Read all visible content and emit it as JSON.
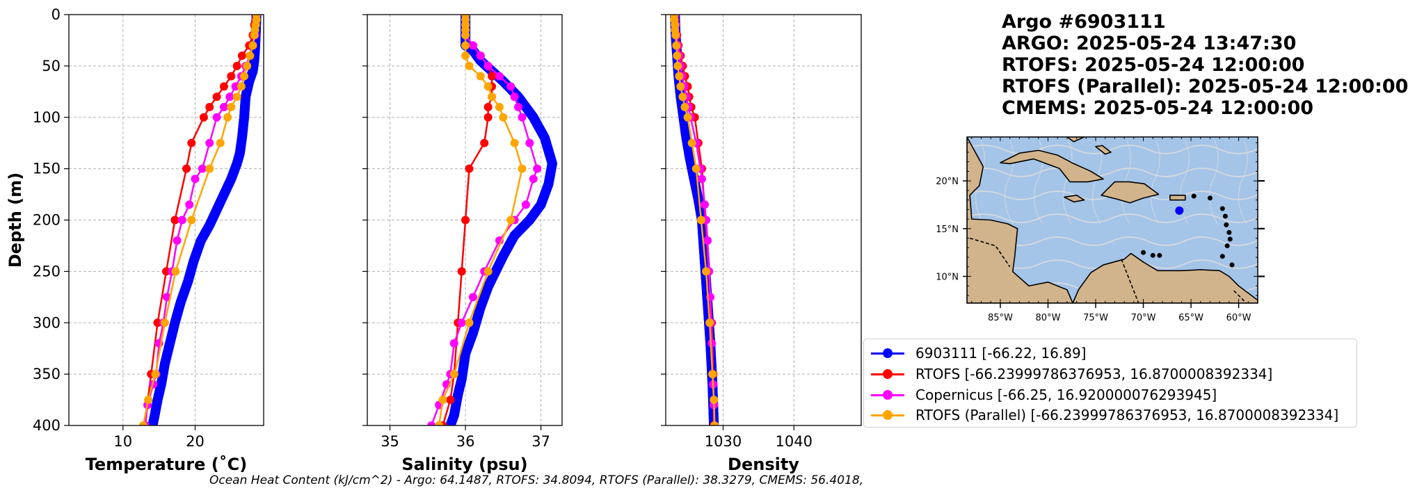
{
  "header": {
    "line1": "Argo #6903111",
    "line2": "ARGO:  2025-05-24 13:47:30",
    "line3": "RTOFS: 2025-05-24 12:00:00",
    "line4": "RTOFS (Parallel): 2025-05-24 12:00:00",
    "line5": "CMEMS: 2025-05-24 12:00:00"
  },
  "footer": {
    "text": "Ocean Heat Content (kJ/cm^2) - Argo: 64.1487,  RTOFS: 34.8094,  RTOFS (Parallel): 38.3279,  CMEMS: 56.4018,"
  },
  "legend": {
    "items": [
      {
        "label": "6903111 [-66.22, 16.89]",
        "color": "#0000ff"
      },
      {
        "label": "RTOFS [-66.23999786376953, 16.8700008392334]",
        "color": "#ff0000"
      },
      {
        "label": "Copernicus [-66.25, 16.920000076293945]",
        "color": "#ff00ff"
      },
      {
        "label": "RTOFS (Parallel) [-66.23999786376953, 16.8700008392334]",
        "color": "#ffa500"
      }
    ]
  },
  "map": {
    "lat_labels": [
      "20°N",
      "15°N",
      "10°N"
    ],
    "lon_labels": [
      "85°W",
      "80°W",
      "75°W",
      "70°W",
      "65°W",
      "60°W"
    ],
    "float_position": {
      "lon": -66.22,
      "lat": 16.89
    },
    "colors": {
      "ocean": "#a4c4e8",
      "land": "#d2b48c",
      "stream": "#dcdcdc",
      "float": "#0000ff"
    }
  },
  "chart_data": [
    {
      "type": "line",
      "xlabel": "Temperature (˚C)",
      "ylabel": "Depth (m)",
      "xlim": [
        2.5,
        29.5
      ],
      "ylim": [
        400,
        0
      ],
      "xticks": [
        10,
        20
      ],
      "yticks": [
        0,
        50,
        100,
        150,
        200,
        250,
        300,
        350,
        400
      ],
      "grid": true,
      "series": [
        {
          "color": "#0000ff",
          "marker": "dense",
          "x": [
            28.5,
            28.4,
            28.3,
            28.2,
            28.0,
            27.5,
            27.0,
            26.8,
            26.5,
            26.2,
            25.8,
            25.0,
            24.0,
            23.0,
            22.0,
            20.8,
            19.8,
            19.0,
            18.0,
            17.2,
            16.5,
            15.8,
            15.3,
            14.8,
            14.4,
            14.1
          ],
          "y": [
            0,
            20,
            35,
            45,
            55,
            65,
            80,
            100,
            120,
            135,
            145,
            160,
            175,
            190,
            205,
            220,
            240,
            260,
            280,
            300,
            320,
            340,
            360,
            375,
            390,
            400
          ]
        },
        {
          "color": "#ff0000",
          "marker": "circle",
          "x": [
            28.5,
            28.4,
            28.2,
            28.0,
            27.5,
            26.5,
            25.8,
            25.0,
            24.0,
            23.0,
            22.0,
            21.2,
            19.5,
            18.8,
            17.2,
            16.0,
            14.8,
            13.9,
            13.0
          ],
          "y": [
            0,
            5,
            10,
            20,
            30,
            40,
            50,
            60,
            70,
            80,
            90,
            100,
            125,
            150,
            200,
            250,
            300,
            350,
            400
          ]
        },
        {
          "color": "#ff00ff",
          "marker": "circle",
          "x": [
            28.5,
            28.4,
            28.3,
            28.0,
            27.6,
            27.0,
            26.4,
            25.6,
            24.8,
            24.0,
            23.0,
            22.0,
            21.0,
            20.0,
            19.2,
            18.2,
            17.5,
            16.8,
            16.1,
            15.6,
            15.0,
            14.6,
            14.2,
            13.4,
            13.1
          ],
          "y": [
            0,
            10,
            20,
            30,
            40,
            50,
            60,
            70,
            80,
            90,
            100,
            125,
            150,
            160,
            185,
            200,
            220,
            250,
            275,
            300,
            320,
            350,
            360,
            380,
            400
          ]
        },
        {
          "color": "#ffa500",
          "marker": "circle",
          "x": [
            28.5,
            28.5,
            28.4,
            28.3,
            28.2,
            28.0,
            27.6,
            27.2,
            26.8,
            26.4,
            25.8,
            25.0,
            24.5,
            23.5,
            22.0,
            19.5,
            17.3,
            15.8,
            14.5,
            13.5,
            12.8
          ],
          "y": [
            0,
            5,
            10,
            15,
            20,
            30,
            40,
            50,
            60,
            70,
            80,
            90,
            100,
            125,
            150,
            200,
            250,
            300,
            350,
            375,
            400
          ]
        }
      ]
    },
    {
      "type": "line",
      "xlabel": "Salinity (psu)",
      "ylabel": "",
      "xlim": [
        34.7,
        37.28
      ],
      "ylim": [
        400,
        0
      ],
      "xticks": [
        35,
        36,
        37
      ],
      "yticks": [
        0,
        50,
        100,
        150,
        200,
        250,
        300,
        350,
        400
      ],
      "grid": true,
      "series": [
        {
          "color": "#0000ff",
          "marker": "dense",
          "x": [
            36.0,
            36.0,
            36.0,
            36.1,
            36.2,
            36.35,
            36.5,
            36.7,
            36.9,
            37.05,
            37.15,
            37.1,
            37.0,
            36.85,
            36.65,
            36.5,
            36.4,
            36.3,
            36.2,
            36.1,
            36.0,
            35.95,
            35.9,
            35.85,
            35.8
          ],
          "y": [
            0,
            20,
            30,
            35,
            45,
            55,
            65,
            80,
            100,
            120,
            145,
            165,
            185,
            200,
            215,
            235,
            250,
            265,
            285,
            310,
            330,
            355,
            370,
            390,
            400
          ]
        },
        {
          "color": "#ff0000",
          "marker": "circle",
          "x": [
            36.0,
            36.0,
            36.0,
            36.1,
            36.2,
            36.3,
            36.35,
            36.35,
            36.35,
            36.3,
            36.3,
            36.25,
            36.05,
            36.0,
            35.95,
            35.9,
            35.85,
            35.8,
            35.7
          ],
          "y": [
            0,
            10,
            20,
            30,
            40,
            50,
            60,
            70,
            80,
            90,
            100,
            125,
            150,
            200,
            250,
            300,
            350,
            375,
            400
          ]
        },
        {
          "color": "#ff00ff",
          "marker": "circle",
          "x": [
            36.0,
            36.0,
            36.0,
            36.1,
            36.2,
            36.3,
            36.45,
            36.6,
            36.65,
            36.7,
            36.75,
            36.85,
            36.95,
            36.9,
            36.8,
            36.65,
            36.45,
            36.25,
            36.1,
            35.95,
            35.85,
            35.8,
            35.75,
            35.65,
            35.55
          ],
          "y": [
            0,
            10,
            20,
            30,
            40,
            50,
            60,
            70,
            80,
            90,
            100,
            125,
            150,
            160,
            185,
            200,
            220,
            250,
            275,
            300,
            320,
            350,
            360,
            380,
            400
          ]
        },
        {
          "color": "#ffa500",
          "marker": "circle",
          "x": [
            36.0,
            36.0,
            36.0,
            36.0,
            36.0,
            36.0,
            36.0,
            36.05,
            36.2,
            36.3,
            36.35,
            36.45,
            36.5,
            36.65,
            36.75,
            36.6,
            36.3,
            36.05,
            35.85,
            35.7,
            35.65
          ],
          "y": [
            0,
            5,
            10,
            15,
            20,
            30,
            40,
            50,
            60,
            70,
            80,
            90,
            100,
            125,
            150,
            200,
            250,
            300,
            350,
            375,
            400
          ]
        }
      ]
    },
    {
      "type": "line",
      "xlabel": "Density",
      "ylabel": "",
      "xlim": [
        1021.9,
        1049.5
      ],
      "ylim": [
        400,
        0
      ],
      "xticks": [
        1030,
        1040
      ],
      "yticks": [
        0,
        50,
        100,
        150,
        200,
        250,
        300,
        350,
        400
      ],
      "grid": true,
      "series": [
        {
          "color": "#0000ff",
          "marker": "dense",
          "x": [
            1023.2,
            1023.3,
            1023.5,
            1023.7,
            1024.0,
            1024.4,
            1024.8,
            1025.3,
            1025.9,
            1026.5,
            1027.0,
            1027.4,
            1027.8,
            1028.2,
            1028.5,
            1028.7
          ],
          "y": [
            0,
            20,
            40,
            60,
            80,
            100,
            120,
            140,
            160,
            180,
            200,
            240,
            280,
            320,
            360,
            400
          ]
        },
        {
          "color": "#ff0000",
          "marker": "circle",
          "x": [
            1023.2,
            1023.2,
            1023.3,
            1023.5,
            1023.7,
            1024.0,
            1024.3,
            1024.6,
            1025.0,
            1025.2,
            1025.5,
            1026.0,
            1026.5,
            1027.0,
            1027.5,
            1028.0,
            1028.4,
            1028.6,
            1028.7
          ],
          "y": [
            0,
            5,
            10,
            20,
            30,
            40,
            50,
            60,
            70,
            80,
            90,
            100,
            125,
            150,
            200,
            250,
            300,
            350,
            400
          ]
        },
        {
          "color": "#ff00ff",
          "marker": "circle",
          "x": [
            1023.2,
            1023.3,
            1023.4,
            1023.6,
            1023.8,
            1024.0,
            1024.2,
            1024.5,
            1024.8,
            1025.1,
            1025.4,
            1026.2,
            1026.8,
            1027.0,
            1027.4,
            1027.6,
            1027.8,
            1028.0,
            1028.2,
            1028.3,
            1028.4,
            1028.5,
            1028.6,
            1028.7,
            1028.8
          ],
          "y": [
            0,
            10,
            20,
            30,
            40,
            50,
            60,
            70,
            80,
            90,
            100,
            125,
            150,
            160,
            185,
            200,
            220,
            250,
            275,
            300,
            320,
            350,
            360,
            380,
            400
          ]
        },
        {
          "color": "#ffa500",
          "marker": "circle",
          "x": [
            1023.1,
            1023.1,
            1023.2,
            1023.2,
            1023.3,
            1023.4,
            1023.5,
            1023.6,
            1023.8,
            1024.0,
            1024.3,
            1024.6,
            1025.0,
            1025.6,
            1026.2,
            1026.9,
            1027.6,
            1028.1,
            1028.5,
            1028.7,
            1028.8
          ],
          "y": [
            0,
            5,
            10,
            15,
            20,
            30,
            40,
            50,
            60,
            70,
            80,
            90,
            100,
            125,
            150,
            200,
            250,
            300,
            350,
            375,
            400
          ]
        }
      ]
    }
  ]
}
